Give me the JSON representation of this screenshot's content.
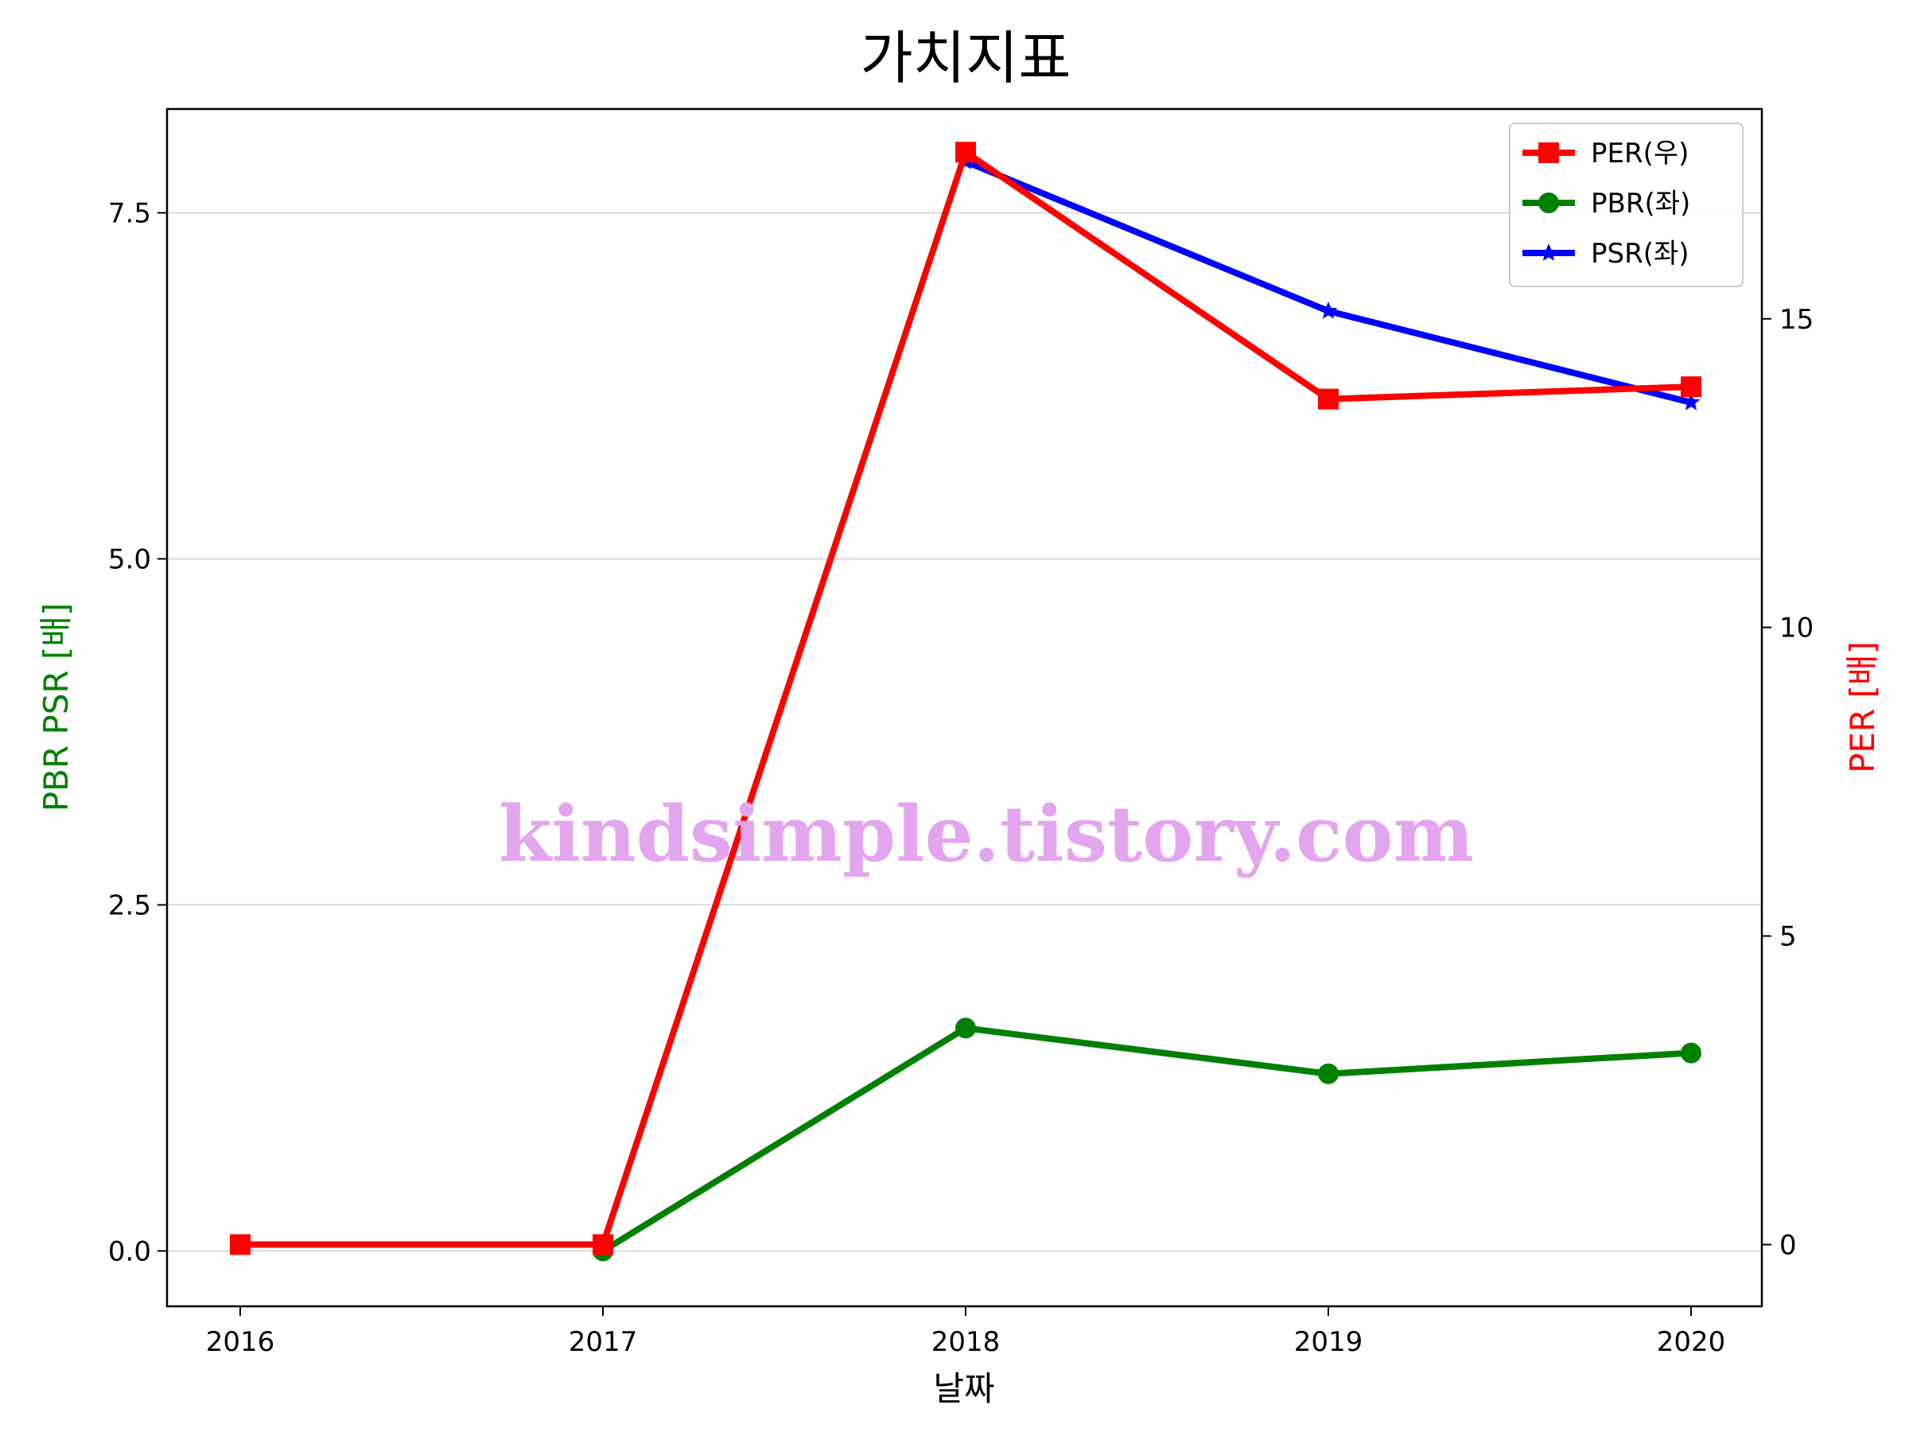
{
  "chart_data": {
    "type": "line",
    "title": "가치지표",
    "xlabel": "날짜",
    "ylabel_left": "PBR PSR [배]",
    "ylabel_right": "PER [배]",
    "categories": [
      "2016",
      "2017",
      "2018",
      "2019",
      "2020"
    ],
    "ylim_left": [
      -0.4,
      8.25
    ],
    "ylim_right": [
      -1,
      18.4
    ],
    "yticks_left": [
      "0.0",
      "2.5",
      "5.0",
      "7.5"
    ],
    "yticks_right": [
      "0",
      "5",
      "10",
      "15"
    ],
    "grid": "horizontal",
    "legend_position": "top-right",
    "series": [
      {
        "name": "PER(우)",
        "axis": "right",
        "color": "#ff0000",
        "marker": "square",
        "values": [
          0,
          0,
          17.7,
          13.7,
          13.9
        ]
      },
      {
        "name": "PBR(좌)",
        "axis": "left",
        "color": "#008000",
        "marker": "circle",
        "values": [
          null,
          0,
          1.61,
          1.28,
          1.43
        ]
      },
      {
        "name": "PSR(좌)",
        "axis": "left",
        "color": "#0000ff",
        "marker": "star",
        "values": [
          null,
          null,
          7.87,
          6.79,
          6.13
        ]
      }
    ],
    "watermark": "kindsimple.tistory.com"
  }
}
